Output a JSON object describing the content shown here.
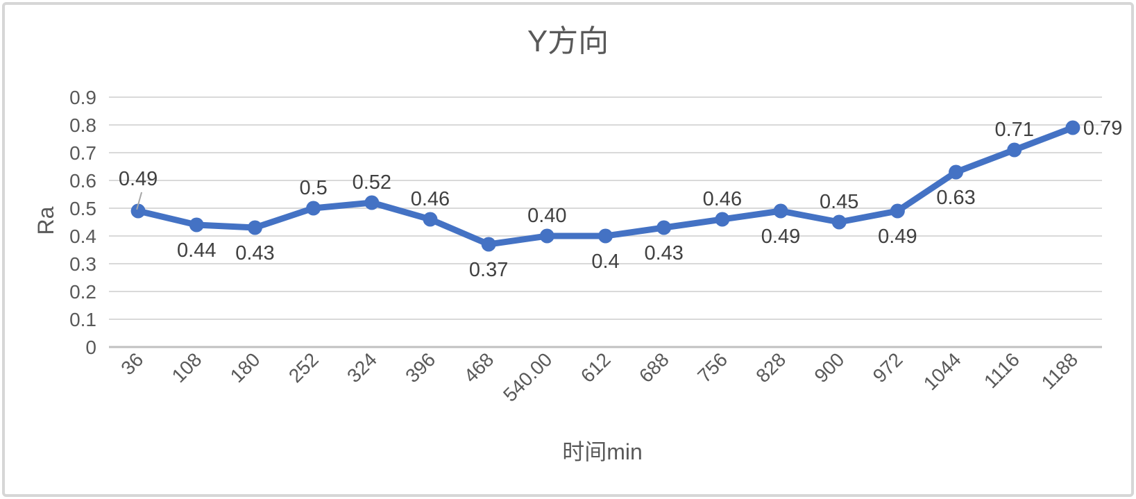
{
  "window": {
    "background": "#ffffff",
    "frame_border_color": "#d6d6d6"
  },
  "chart_data": {
    "type": "line",
    "title": "Y方向",
    "xlabel": "时间min",
    "ylabel": "Ra",
    "categories": [
      "36",
      "108",
      "180",
      "252",
      "324",
      "396",
      "468",
      "540.00",
      "612",
      "688",
      "756",
      "828",
      "900",
      "972",
      "1044",
      "1116",
      "1188"
    ],
    "values": [
      0.49,
      0.44,
      0.43,
      0.5,
      0.52,
      0.46,
      0.37,
      0.4,
      0.4,
      0.43,
      0.46,
      0.49,
      0.45,
      0.49,
      0.63,
      0.71,
      0.79
    ],
    "data_labels": [
      "0.49",
      "0.44",
      "0.43",
      "0.5",
      "0.52",
      "0.46",
      "0.37",
      "0.40",
      "0.4",
      "0.43",
      "0.46",
      "0.49",
      "0.45",
      "0.49",
      "0.63",
      "0.71",
      "0.79"
    ],
    "label_positions": [
      "above-leader",
      "below",
      "below",
      "above",
      "above",
      "above",
      "below",
      "above",
      "below",
      "below",
      "above",
      "below",
      "above",
      "below",
      "below",
      "above",
      "right"
    ],
    "ylim": [
      0,
      0.9
    ],
    "yticks": [
      "0",
      "0.1",
      "0.2",
      "0.3",
      "0.4",
      "0.5",
      "0.6",
      "0.7",
      "0.8",
      "0.9"
    ],
    "grid": true,
    "legend": "none",
    "series_color": "#4472C4",
    "gridline_color": "#D9D9D9",
    "axis_line_color": "#C0C0C0",
    "tick_color": "#595959",
    "data_label_color": "#404040",
    "title_color": "#595959",
    "leader_line_color": "#A6A6A6"
  }
}
